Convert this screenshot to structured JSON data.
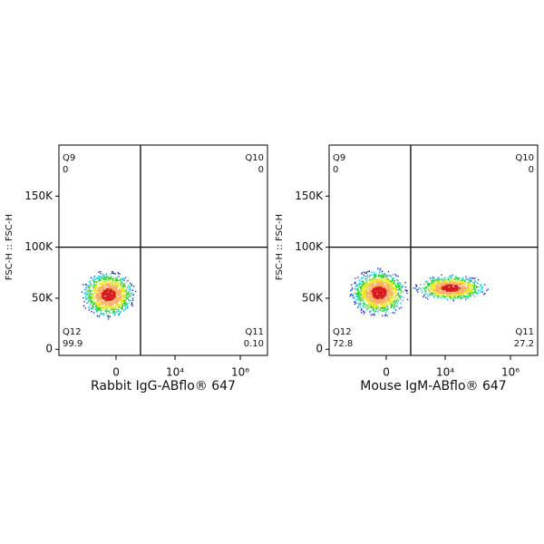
{
  "chart_data": [
    {
      "type": "quadrant-density",
      "x_label": "Rabbit IgG-ABflo® 647",
      "y_label": "FSC-H :: FSC-H",
      "xscale": "biexponential",
      "xlim": [
        -8800,
        6800000
      ],
      "xticks": [
        0,
        {
          "value": 10000,
          "label": "10⁴"
        },
        {
          "value": 1000000,
          "label": "10⁶"
        }
      ],
      "ylim": [
        -6000,
        200000
      ],
      "yticks": [
        0,
        {
          "value": 50000,
          "label": "50K"
        },
        {
          "value": 100000,
          "label": "100K"
        },
        {
          "value": 150000,
          "label": "150K"
        }
      ],
      "gate": {
        "x": 850,
        "y": 100000
      },
      "quadrant_names": [
        "Q9",
        "Q10",
        "Q11",
        "Q12"
      ],
      "values": [
        0,
        0,
        0.1,
        99.9
      ],
      "value_labels": [
        "0",
        "0",
        "0.10",
        "99.9"
      ],
      "populations": [
        {
          "x": [
            -2000,
            600
          ],
          "y": [
            30000,
            78000
          ]
        }
      ]
    },
    {
      "type": "quadrant-density",
      "x_label": "Mouse IgM-ABflo® 647",
      "y_label": "FSC-H :: FSC-H",
      "xscale": "biexponential",
      "xlim": [
        -8800,
        6800000
      ],
      "xticks": [
        0,
        {
          "value": 10000,
          "label": "10⁴"
        },
        {
          "value": 1000000,
          "label": "10⁶"
        }
      ],
      "ylim": [
        -6000,
        200000
      ],
      "yticks": [
        0,
        {
          "value": 50000,
          "label": "50K"
        },
        {
          "value": 100000,
          "label": "100K"
        },
        {
          "value": 150000,
          "label": "150K"
        }
      ],
      "gate": {
        "x": 850,
        "y": 100000
      },
      "quadrant_names": [
        "Q9",
        "Q10",
        "Q11",
        "Q12"
      ],
      "values": [
        0,
        0,
        27.2,
        72.8
      ],
      "value_labels": [
        "0",
        "0",
        "27.2",
        "72.8"
      ],
      "populations": [
        {
          "x": [
            -2200,
            700
          ],
          "y": [
            32000,
            80000
          ]
        },
        {
          "x": [
            1000,
            200000
          ],
          "y": [
            47000,
            74000
          ]
        }
      ]
    }
  ]
}
